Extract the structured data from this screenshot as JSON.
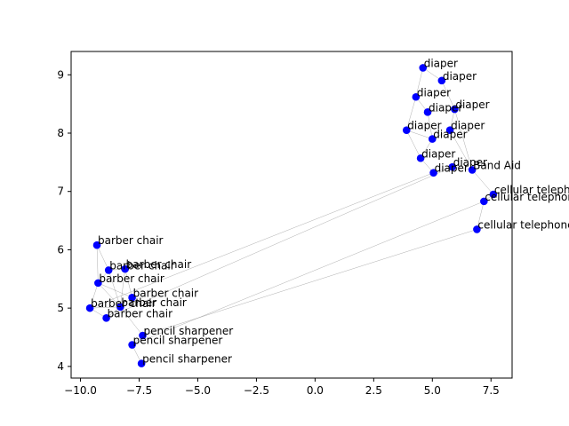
{
  "chart_data": {
    "type": "scatter",
    "title": "",
    "xlabel": "",
    "ylabel": "",
    "xlim": [
      -10.4,
      8.4
    ],
    "ylim": [
      3.8,
      9.4
    ],
    "xticks": [
      -10.0,
      -7.5,
      -5.0,
      -2.5,
      0.0,
      2.5,
      5.0,
      7.5
    ],
    "xtick_labels": [
      "−10.0",
      "−7.5",
      "−5.0",
      "−2.5",
      "0.0",
      "2.5",
      "5.0",
      "7.5"
    ],
    "yticks": [
      4,
      5,
      6,
      7,
      8,
      9
    ],
    "ytick_labels": [
      "4",
      "5",
      "6",
      "7",
      "8",
      "9"
    ],
    "grid": false,
    "point_color": "#0000ff",
    "edge_color": "#808080",
    "points": [
      {
        "x": 4.6,
        "y": 9.12,
        "label": "diaper"
      },
      {
        "x": 5.4,
        "y": 8.9,
        "label": "diaper"
      },
      {
        "x": 4.3,
        "y": 8.62,
        "label": "diaper"
      },
      {
        "x": 4.8,
        "y": 8.36,
        "label": "diaper"
      },
      {
        "x": 5.95,
        "y": 8.41,
        "label": "diaper"
      },
      {
        "x": 3.9,
        "y": 8.05,
        "label": "diaper"
      },
      {
        "x": 5.75,
        "y": 8.05,
        "label": "diaper"
      },
      {
        "x": 5.0,
        "y": 7.9,
        "label": "diaper"
      },
      {
        "x": 4.5,
        "y": 7.57,
        "label": "diaper"
      },
      {
        "x": 5.85,
        "y": 7.42,
        "label": "diaper"
      },
      {
        "x": 5.05,
        "y": 7.32,
        "label": "diaper"
      },
      {
        "x": 6.7,
        "y": 7.37,
        "label": "Band Aid"
      },
      {
        "x": 7.6,
        "y": 6.95,
        "label": "cellular telephone"
      },
      {
        "x": 7.2,
        "y": 6.83,
        "label": "cellular telephone"
      },
      {
        "x": 6.9,
        "y": 6.35,
        "label": "cellular telephone"
      },
      {
        "x": -9.3,
        "y": 6.08,
        "label": "barber chair"
      },
      {
        "x": -8.8,
        "y": 5.65,
        "label": "barber chair"
      },
      {
        "x": -8.1,
        "y": 5.67,
        "label": "barber chair"
      },
      {
        "x": -9.25,
        "y": 5.43,
        "label": "barber chair"
      },
      {
        "x": -7.8,
        "y": 5.18,
        "label": "barber chair"
      },
      {
        "x": -8.3,
        "y": 5.02,
        "label": "barber chair"
      },
      {
        "x": -9.6,
        "y": 5.0,
        "label": "barber chair"
      },
      {
        "x": -8.9,
        "y": 4.83,
        "label": "barber chair"
      },
      {
        "x": -7.35,
        "y": 4.53,
        "label": "pencil sharpener"
      },
      {
        "x": -7.8,
        "y": 4.37,
        "label": "pencil sharpener"
      },
      {
        "x": -7.4,
        "y": 4.05,
        "label": "pencil sharpener"
      }
    ],
    "edges": [
      [
        0,
        1
      ],
      [
        0,
        2
      ],
      [
        1,
        4
      ],
      [
        2,
        3
      ],
      [
        3,
        4
      ],
      [
        2,
        5
      ],
      [
        5,
        7
      ],
      [
        3,
        7
      ],
      [
        4,
        6
      ],
      [
        6,
        7
      ],
      [
        7,
        8
      ],
      [
        8,
        10
      ],
      [
        10,
        9
      ],
      [
        9,
        11
      ],
      [
        6,
        11
      ],
      [
        5,
        8
      ],
      [
        4,
        11
      ],
      [
        11,
        12
      ],
      [
        12,
        13
      ],
      [
        13,
        14
      ],
      [
        15,
        16
      ],
      [
        15,
        18
      ],
      [
        16,
        17
      ],
      [
        16,
        18
      ],
      [
        18,
        19
      ],
      [
        17,
        19
      ],
      [
        18,
        21
      ],
      [
        21,
        20
      ],
      [
        20,
        22
      ],
      [
        19,
        22
      ],
      [
        21,
        22
      ],
      [
        16,
        20
      ],
      [
        18,
        20
      ],
      [
        17,
        20
      ],
      [
        20,
        23
      ],
      [
        23,
        24
      ],
      [
        24,
        25
      ],
      [
        10,
        21
      ],
      [
        9,
        22
      ],
      [
        14,
        23
      ],
      [
        13,
        24
      ]
    ]
  }
}
